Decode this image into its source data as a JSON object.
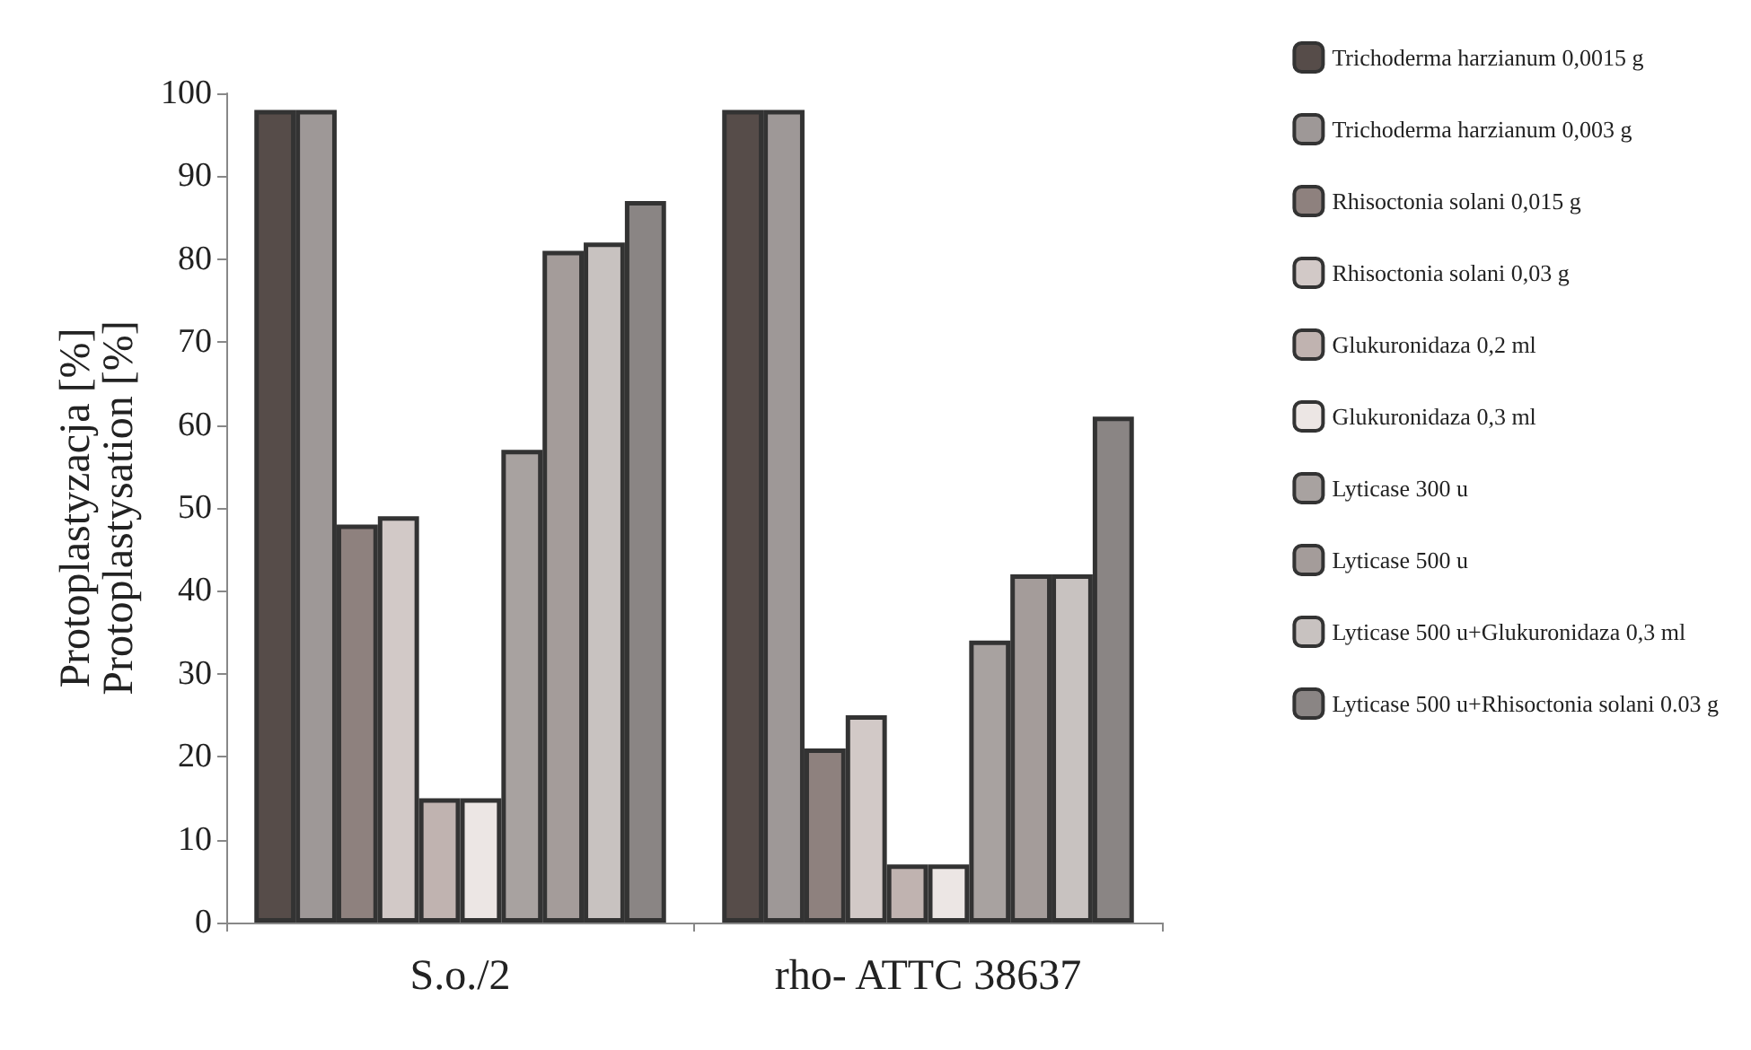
{
  "chart_data": {
    "type": "bar",
    "ylabel": "Protoplastyzacja [%]\nProtoplastysation [%]",
    "categories": [
      "S.o./2",
      "rho- ATTC 38637"
    ],
    "ylim": [
      0,
      100
    ],
    "yticks": [
      0,
      10,
      20,
      30,
      40,
      50,
      60,
      70,
      80,
      90,
      100
    ],
    "grid": false,
    "legend": "right",
    "series": [
      {
        "name": "Trichoderma harzianum 0,0015 g",
        "color": "#564c49",
        "values": [
          98,
          98
        ]
      },
      {
        "name": "Trichoderma harzianum 0,003 g",
        "color": "#9e9897",
        "values": [
          98,
          98
        ]
      },
      {
        "name": "Rhisoctonia solani 0,015 g",
        "color": "#8e817e",
        "values": [
          48,
          21
        ]
      },
      {
        "name": "Rhisoctonia solani 0,03 g",
        "color": "#d2c9c7",
        "values": [
          49,
          25
        ]
      },
      {
        "name": "Glukuronidaza 0,2 ml",
        "color": "#c0b3b0",
        "values": [
          15,
          7
        ]
      },
      {
        "name": "Glukuronidaza 0,3 ml",
        "color": "#ece6e4",
        "values": [
          15,
          7
        ]
      },
      {
        "name": "Lyticase 300 u",
        "color": "#a8a2a0",
        "values": [
          57,
          34
        ]
      },
      {
        "name": "Lyticase 500 u",
        "color": "#a49c9a",
        "values": [
          81,
          42
        ]
      },
      {
        "name": "Lyticase 500 u+Glukuronidaza 0,3 ml",
        "color": "#c8c2c0",
        "values": [
          82,
          42
        ]
      },
      {
        "name": "Lyticase 500 u+Rhisoctonia solani 0.03 g",
        "color": "#8a8584",
        "values": [
          87,
          61
        ]
      }
    ]
  }
}
